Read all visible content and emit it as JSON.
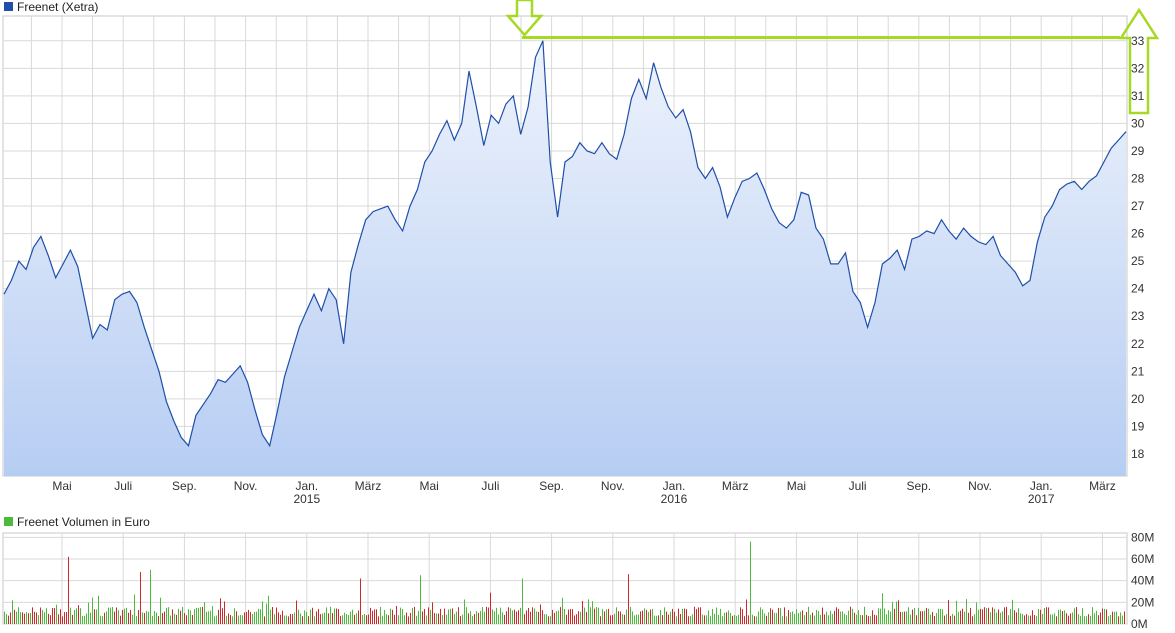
{
  "colors": {
    "price_line": "#1f4fa8",
    "price_fill_top": "#eef3fc",
    "price_fill_bottom": "#b6cdf3",
    "grid": "#d9d9d9",
    "volume_up": "#4cbb3c",
    "volume_down": "#cc2a2a",
    "annotation": "#a6d824",
    "price_legend_swatch": "#1f4fa8",
    "volume_legend_swatch": "#4cbb3c"
  },
  "chart_data": [
    {
      "type": "area",
      "legend": "Freenet (Xetra)",
      "y_ticks": [
        "18",
        "19",
        "20",
        "21",
        "22",
        "23",
        "24",
        "25",
        "26",
        "27",
        "28",
        "29",
        "30",
        "31",
        "32",
        "33"
      ],
      "ylim": [
        17.2,
        33.9
      ],
      "x_ticks": [
        {
          "label": "Mai",
          "year": ""
        },
        {
          "label": "Juli",
          "year": ""
        },
        {
          "label": "Sep.",
          "year": ""
        },
        {
          "label": "Nov.",
          "year": ""
        },
        {
          "label": "Jan.",
          "year": "2015"
        },
        {
          "label": "März",
          "year": ""
        },
        {
          "label": "Mai",
          "year": ""
        },
        {
          "label": "Juli",
          "year": ""
        },
        {
          "label": "Sep.",
          "year": ""
        },
        {
          "label": "Nov.",
          "year": ""
        },
        {
          "label": "Jan.",
          "year": "2016"
        },
        {
          "label": "März",
          "year": ""
        },
        {
          "label": "Mai",
          "year": ""
        },
        {
          "label": "Juli",
          "year": ""
        },
        {
          "label": "Sep.",
          "year": ""
        },
        {
          "label": "Nov.",
          "year": ""
        },
        {
          "label": "Jan.",
          "year": "2017"
        },
        {
          "label": "März",
          "year": ""
        }
      ],
      "series": [
        {
          "values": [
            23.8,
            24.3,
            25.0,
            24.7,
            25.5,
            25.9,
            25.2,
            24.4,
            24.9,
            25.4,
            24.8,
            23.5,
            22.2,
            22.7,
            22.5,
            23.6,
            23.8,
            23.9,
            23.5,
            22.6,
            21.8,
            21.0,
            19.9,
            19.2,
            18.6,
            18.3,
            19.4,
            19.8,
            20.2,
            20.7,
            20.6,
            20.9,
            21.2,
            20.6,
            19.6,
            18.7,
            18.3,
            19.5,
            20.8,
            21.7,
            22.6,
            23.2,
            23.8,
            23.2,
            24.0,
            23.6,
            22.0,
            24.6,
            25.6,
            26.5,
            26.8,
            26.9,
            27.0,
            26.5,
            26.1,
            27.0,
            27.6,
            28.6,
            29.0,
            29.6,
            30.1,
            29.4,
            30.0,
            31.9,
            30.6,
            29.2,
            30.3,
            30.0,
            30.7,
            31.0,
            29.6,
            30.6,
            32.4,
            33.0,
            28.6,
            26.6,
            28.6,
            28.8,
            29.3,
            29.0,
            28.9,
            29.3,
            28.9,
            28.7,
            29.6,
            30.9,
            31.6,
            30.9,
            32.2,
            31.3,
            30.6,
            30.2,
            30.5,
            29.7,
            28.4,
            28.0,
            28.4,
            27.7,
            26.6,
            27.3,
            27.9,
            28.0,
            28.2,
            27.6,
            26.9,
            26.4,
            26.2,
            26.5,
            27.5,
            27.4,
            26.2,
            25.8,
            24.9,
            24.9,
            25.3,
            23.9,
            23.5,
            22.6,
            23.5,
            24.9,
            25.1,
            25.4,
            24.7,
            25.8,
            25.9,
            26.1,
            26.0,
            26.5,
            26.1,
            25.8,
            26.2,
            25.9,
            25.7,
            25.6,
            25.9,
            25.2,
            24.9,
            24.6,
            24.1,
            24.3,
            25.7,
            26.6,
            27.0,
            27.6,
            27.8,
            27.9,
            27.6,
            27.9,
            28.1,
            28.6,
            29.1,
            29.4,
            29.7
          ]
        }
      ]
    },
    {
      "type": "bar",
      "legend": "Freenet Volumen in Euro",
      "y_ticks": [
        "0M",
        "20M",
        "40M",
        "60M",
        "80M"
      ],
      "ylim": [
        0,
        84
      ],
      "series": [
        {
          "name": "up",
          "values": []
        },
        {
          "name": "down",
          "values": []
        }
      ]
    }
  ]
}
